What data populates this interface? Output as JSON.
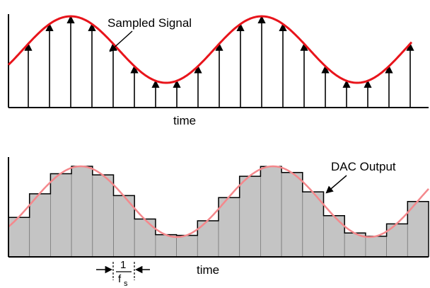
{
  "top_panel": {
    "signal_label": "Sampled Signal",
    "x_label": "time",
    "signal_color": "#e8141b",
    "sample_count": 19
  },
  "bottom_panel": {
    "output_label": "DAC Output",
    "x_label": "time",
    "signal_color": "#f4888c",
    "bar_color": "#c4c4c4",
    "step_count": 20,
    "period_label": {
      "numerator": "1",
      "denominator": "f",
      "subscript": "s"
    }
  }
}
